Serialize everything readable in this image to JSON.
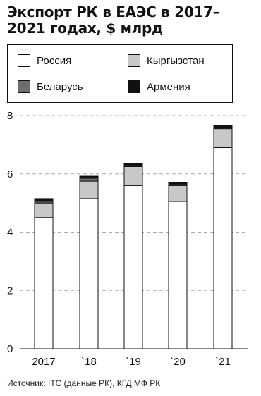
{
  "title": "Экспорт РК в ЕАЭС в 2017–2021 годах, $ млрд",
  "legend": [
    {
      "name": "Россия",
      "color": "#ffffff"
    },
    {
      "name": "Кыргызстан",
      "color": "#c8c8c8"
    },
    {
      "name": "Беларусь",
      "color": "#6e6e6e"
    },
    {
      "name": "Армения",
      "color": "#111111"
    }
  ],
  "source": "Источник: ITC (данные РК), КГД МФ РК",
  "chart_data": {
    "type": "bar",
    "stacked": true,
    "categories": [
      "2017",
      "`18",
      "`19",
      "`20",
      "`21"
    ],
    "series": [
      {
        "name": "Россия",
        "color": "#ffffff",
        "values": [
          4.5,
          5.15,
          5.6,
          5.05,
          6.9
        ]
      },
      {
        "name": "Кыргызстан",
        "color": "#c8c8c8",
        "values": [
          0.5,
          0.6,
          0.65,
          0.55,
          0.65
        ]
      },
      {
        "name": "Беларусь",
        "color": "#6e6e6e",
        "values": [
          0.08,
          0.1,
          0.05,
          0.05,
          0.05
        ]
      },
      {
        "name": "Армения",
        "color": "#111111",
        "values": [
          0.07,
          0.07,
          0.05,
          0.05,
          0.05
        ]
      }
    ],
    "yticks": [
      "0",
      "2",
      "4",
      "6",
      "8"
    ],
    "ylim": [
      0,
      8
    ],
    "grid": true,
    "legend_position": "top"
  }
}
